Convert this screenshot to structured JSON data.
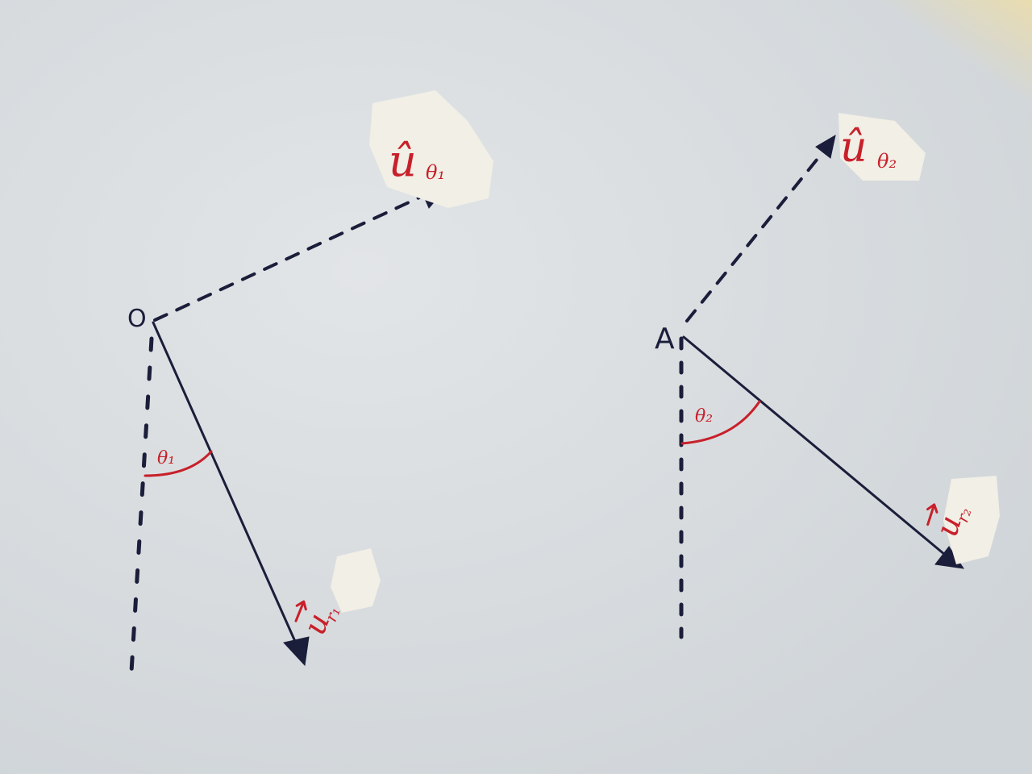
{
  "diagrams": [
    {
      "origin_label": "O",
      "angle_label": "θ₁",
      "radial_unit_label": "u",
      "radial_subscript": "r₁",
      "tangential_unit_label": "û",
      "tangential_subscript": "θ₁"
    },
    {
      "origin_label": "A",
      "angle_label": "θ₂",
      "radial_unit_label": "u",
      "radial_subscript": "r₂",
      "tangential_unit_label": "û",
      "tangential_subscript": "θ₂"
    }
  ],
  "colors": {
    "ink": "#1b1e3a",
    "annotation": "#c8202a",
    "paper": "#d9dde0"
  }
}
